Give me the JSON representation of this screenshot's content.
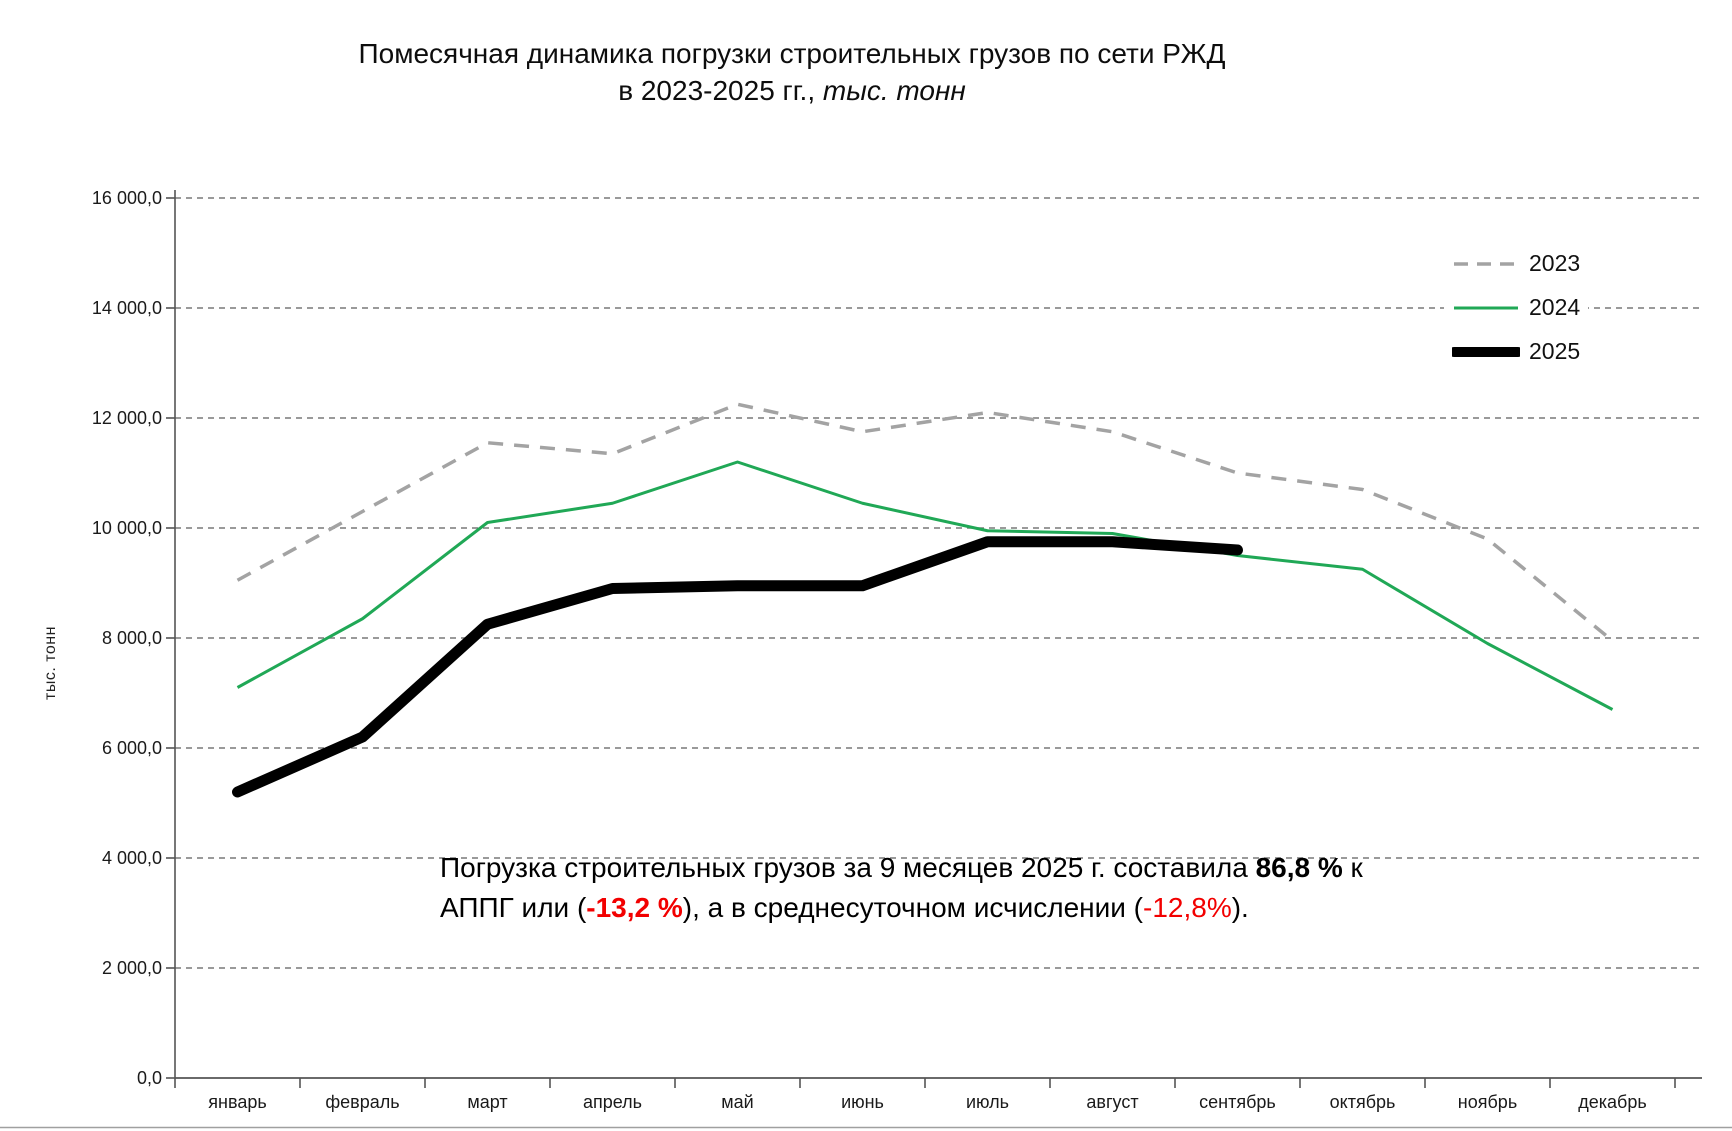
{
  "title": {
    "line1": "Помесячная динамика  погрузки строительных грузов по сети РЖД",
    "line2_prefix": "в 2023-2025 гг., ",
    "line2_italic": "тыс. тонн"
  },
  "annotation": {
    "l1a": "Погрузка строительных грузов за 9 месяцев  2025 г. составила ",
    "l1b": "86,8 %",
    "l1c": " к",
    "l2a": "АППГ или (",
    "l2b": "-13,2 %",
    "l2c": "),  а в среднесуточном исчислении (",
    "l2d": "-12,8%",
    "l2e": ")."
  },
  "colors": {
    "negative_red": "#f20000",
    "gridline_gray": "#787878",
    "axis_gray": "#555555"
  },
  "chart_data": {
    "type": "line",
    "title": "Помесячная динамика погрузки строительных грузов по сети РЖД в 2023-2025 гг., тыс. тонн",
    "xlabel": "",
    "ylabel": "тыс. тонн",
    "ylim": [
      0,
      16000
    ],
    "ytick_step": 2000,
    "ytick_labels": [
      "0,0",
      "2 000,0",
      "4 000,0",
      "6 000,0",
      "8 000,0",
      "10 000,0",
      "12 000,0",
      "14 000,0",
      "16 000,0"
    ],
    "grid": "horizontal-dashed",
    "legend_position": "upper-right",
    "categories": [
      "январь",
      "февраль",
      "март",
      "апрель",
      "май",
      "июнь",
      "июль",
      "август",
      "сентябрь",
      "октябрь",
      "ноябрь",
      "декабрь"
    ],
    "series": [
      {
        "name": "2023",
        "color": "#a3a3a3",
        "style": "dashed",
        "width": 3.5,
        "values": [
          9050,
          10300,
          11550,
          11350,
          12250,
          11750,
          12100,
          11750,
          11000,
          10700,
          9800,
          7950
        ]
      },
      {
        "name": "2024",
        "color": "#20a856",
        "style": "solid",
        "width": 3,
        "values": [
          7100,
          8350,
          10100,
          10450,
          11200,
          10450,
          9950,
          9900,
          9500,
          9250,
          7900,
          6700
        ]
      },
      {
        "name": "2025",
        "color": "#000000",
        "style": "solid-thick",
        "width": 11,
        "values": [
          5200,
          6200,
          8250,
          8900,
          8950,
          8950,
          9750,
          9750,
          9600,
          null,
          null,
          null
        ]
      }
    ]
  }
}
